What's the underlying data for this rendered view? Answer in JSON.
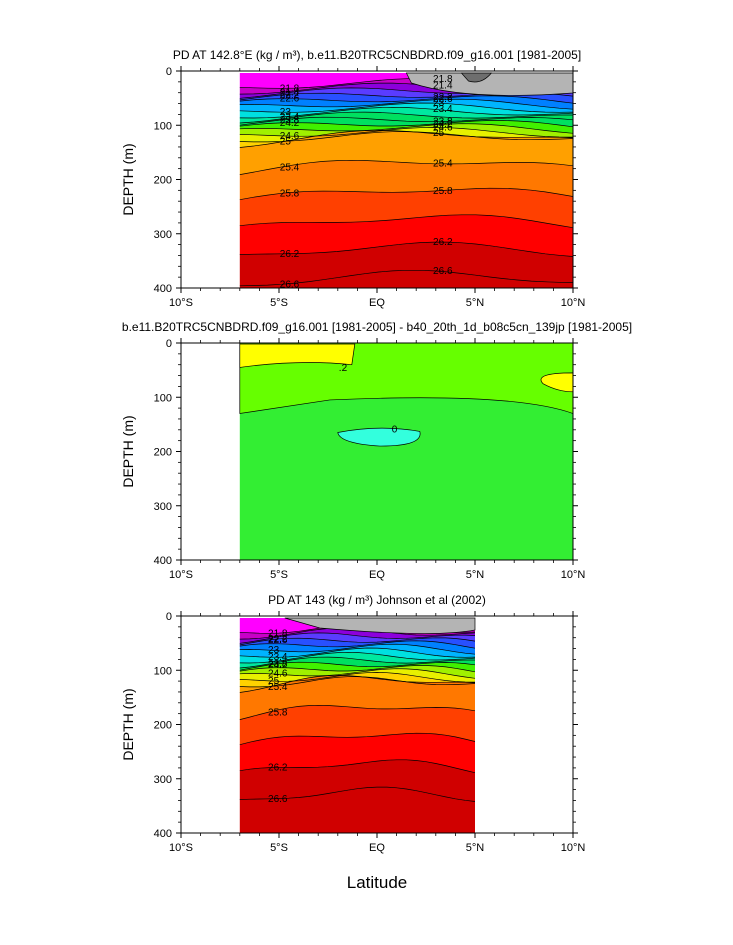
{
  "figure": {
    "xlabel": "Latitude",
    "colors": [
      "#ff00ff",
      "#c800c8",
      "#8c00dc",
      "#5a3cff",
      "#2850ff",
      "#0080ff",
      "#00b4ff",
      "#00e0e0",
      "#00e8a0",
      "#00e060",
      "#40f000",
      "#a0f000",
      "#e8f000",
      "#ffd200",
      "#ffa000",
      "#ff7800",
      "#ff4000",
      "#ff0000",
      "#d00000"
    ],
    "gray": "#b4b4b4",
    "darkgray": "#6e6e6e",
    "green": "#33ee33",
    "yellow": "#ffff00",
    "cyan": "#33ffdd"
  },
  "chart_data": [
    {
      "type": "heatmap",
      "title": "PD AT 142.8°E (kg / m³), b.e11.B20TRC5CNBDRD.f09_g16.001 [1981-2005]",
      "ylabel": "DEPTH (m)",
      "xlim": [
        "10°S",
        "10°N"
      ],
      "ylim": [
        0,
        400
      ],
      "x_ticks": [
        "10°S",
        "5°S",
        "EQ",
        "5°N",
        "10°N"
      ],
      "y_ticks": [
        "0",
        "100",
        "200",
        "300",
        "400"
      ],
      "data_lat_range": [
        "7°S",
        "10°N"
      ],
      "contour_labels": [
        "21.8",
        "21.4",
        "22.2",
        "22.6",
        "23",
        "23.4",
        "23.8",
        "24.2",
        "24.6",
        "25",
        "25.4",
        "25.8",
        "26.2",
        "26.6"
      ]
    },
    {
      "type": "heatmap",
      "title": "b.e11.B20TRC5CNBDRD.f09_g16.001 [1981-2005] - b40_20th_1d_b08c5cn_139jp [1981-2005]",
      "ylabel": "DEPTH (m)",
      "xlim": [
        "10°S",
        "10°N"
      ],
      "ylim": [
        0,
        400
      ],
      "x_ticks": [
        "10°S",
        "5°S",
        "EQ",
        "5°N",
        "10°N"
      ],
      "y_ticks": [
        "0",
        "100",
        "200",
        "300",
        "400"
      ],
      "data_lat_range": [
        "7°S",
        "10°N"
      ],
      "contour_labels": [
        ".2",
        "0"
      ]
    },
    {
      "type": "heatmap",
      "title": "PD AT 143 (kg / m³) Johnson et al (2002)",
      "ylabel": "DEPTH (m)",
      "xlim": [
        "10°S",
        "10°N"
      ],
      "ylim": [
        0,
        400
      ],
      "x_ticks": [
        "10°S",
        "5°S",
        "EQ",
        "5°N",
        "10°N"
      ],
      "y_ticks": [
        "0",
        "100",
        "200",
        "300",
        "400"
      ],
      "data_lat_range": [
        "7°S",
        "5°N"
      ],
      "contour_labels": [
        "21.8",
        "22.2",
        "22.6",
        "23",
        "23.4",
        "23.8",
        "24.2",
        "24.6",
        "25",
        "25.4",
        "25.8",
        "26.2",
        "26.6"
      ]
    }
  ]
}
